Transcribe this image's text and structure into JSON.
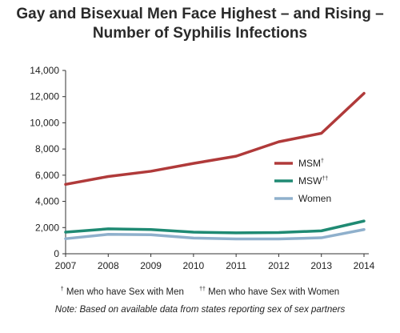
{
  "chart_data": {
    "type": "line",
    "title_line1": "Gay and Bisexual Men Face Highest – and Rising –",
    "title_line2": "Number of Syphilis Infections",
    "x": [
      "2007",
      "2008",
      "2009",
      "2010",
      "2011",
      "2012",
      "2013",
      "2014"
    ],
    "ylim": [
      0,
      14000
    ],
    "yticks": [
      0,
      2000,
      4000,
      6000,
      8000,
      10000,
      12000,
      14000
    ],
    "ytick_labels": [
      "0",
      "2,000",
      "4,000",
      "6,000",
      "8,000",
      "10,000",
      "12,000",
      "14,000"
    ],
    "grid": false,
    "legend_placement": "right",
    "series": [
      {
        "name": "MSM",
        "sup": "†",
        "color": "#b03a3a",
        "values": [
          5300,
          5900,
          6300,
          6900,
          7450,
          8550,
          9200,
          12250
        ]
      },
      {
        "name": "MSW",
        "sup": "††",
        "color": "#1f8a73",
        "values": [
          1650,
          1900,
          1850,
          1650,
          1600,
          1620,
          1750,
          2500
        ]
      },
      {
        "name": "Women",
        "sup": "",
        "color": "#8fb0cc",
        "values": [
          1150,
          1480,
          1450,
          1200,
          1130,
          1130,
          1220,
          1850
        ]
      }
    ]
  },
  "footnotes": {
    "msm_symbol": "†",
    "msm_text": "Men who have Sex with Men",
    "msw_symbol": "††",
    "msw_text": "Men who have Sex with Women",
    "note": "Note: Based on available data from states reporting sex of sex partners"
  }
}
